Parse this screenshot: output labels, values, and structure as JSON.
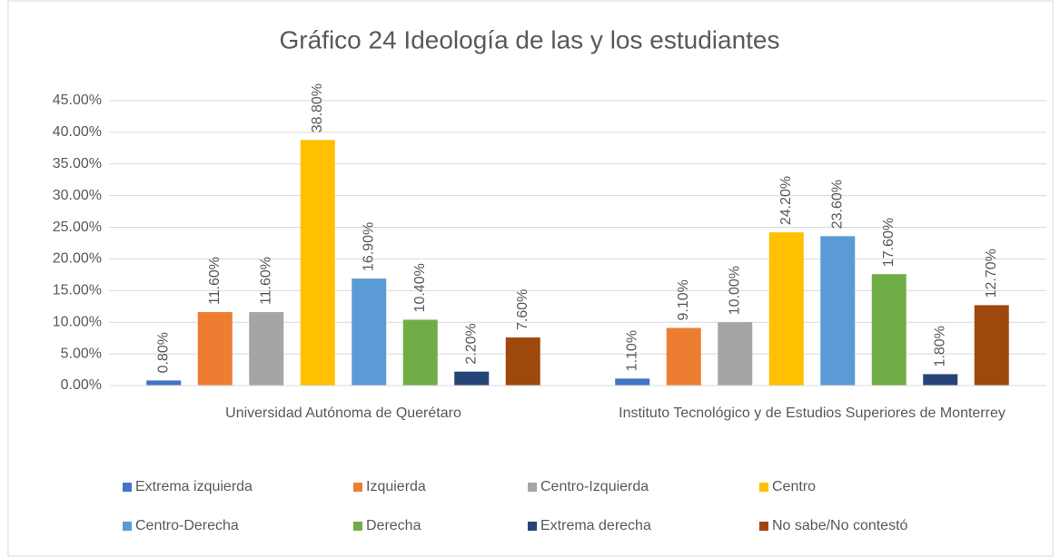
{
  "chart_data": {
    "type": "bar",
    "title": "Gráfico 24 Ideología de las y los estudiantes",
    "categories": [
      "Universidad Autónoma de Querétaro",
      "Instituto Tecnológico y de Estudios Superiores de Monterrey"
    ],
    "series": [
      {
        "name": "Extrema izquierda",
        "color": "#4472c4",
        "values": [
          0.8,
          1.1
        ],
        "value_labels": [
          "0.80%",
          "1.10%"
        ]
      },
      {
        "name": "Izquierda",
        "color": "#ed7d31",
        "values": [
          11.6,
          9.1
        ],
        "value_labels": [
          "11.60%",
          "9.10%"
        ]
      },
      {
        "name": "Centro-Izquierda",
        "color": "#a5a5a5",
        "values": [
          11.6,
          10.0
        ],
        "value_labels": [
          "11.60%",
          "10.00%"
        ]
      },
      {
        "name": "Centro",
        "color": "#ffc000",
        "values": [
          38.8,
          24.2
        ],
        "value_labels": [
          "38.80%",
          "24.20%"
        ]
      },
      {
        "name": "Centro-Derecha",
        "color": "#5b9bd5",
        "values": [
          16.9,
          23.6
        ],
        "value_labels": [
          "16.90%",
          "23.60%"
        ]
      },
      {
        "name": "Derecha",
        "color": "#70ad47",
        "values": [
          10.4,
          17.6
        ],
        "value_labels": [
          "10.40%",
          "17.60%"
        ]
      },
      {
        "name": "Extrema derecha",
        "color": "#264478",
        "values": [
          2.2,
          1.8
        ],
        "value_labels": [
          "2.20%",
          "1.80%"
        ]
      },
      {
        "name": "No sabe/No contestó",
        "color": "#9e480e",
        "values": [
          7.6,
          12.7
        ],
        "value_labels": [
          "7.60%",
          "12.70%"
        ]
      }
    ],
    "ylim": [
      0,
      45
    ],
    "yticks": [
      {
        "value": 0,
        "label": "0.00%"
      },
      {
        "value": 5,
        "label": "5.00%"
      },
      {
        "value": 10,
        "label": "10.00%"
      },
      {
        "value": 15,
        "label": "15.00%"
      },
      {
        "value": 20,
        "label": "20.00%"
      },
      {
        "value": 25,
        "label": "25.00%"
      },
      {
        "value": 30,
        "label": "30.00%"
      },
      {
        "value": 35,
        "label": "35.00%"
      },
      {
        "value": 40,
        "label": "40.00%"
      },
      {
        "value": 45,
        "label": "45.00%"
      }
    ],
    "grid": true,
    "legend": "bottom"
  }
}
